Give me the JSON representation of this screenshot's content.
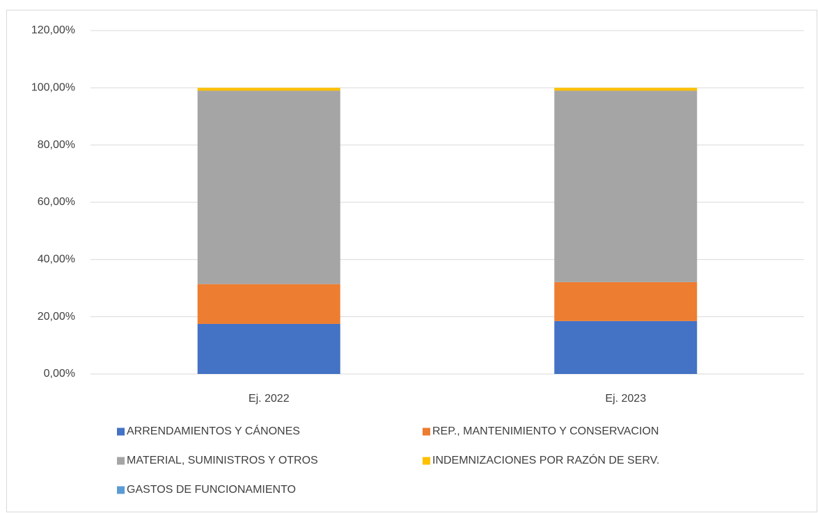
{
  "chart_data": {
    "type": "stacked_bar",
    "categories": [
      "Ej. 2022",
      "Ej. 2023"
    ],
    "series": [
      {
        "name": "ARRENDAMIENTOS Y CÁNONES",
        "color": "#4472c4",
        "values": [
          17.5,
          18.5
        ]
      },
      {
        "name": "REP., MANTENIMIENTO Y CONSERVACION",
        "color": "#ed7d31",
        "values": [
          13.9,
          13.6
        ]
      },
      {
        "name": "MATERIAL, SUMINISTROS Y OTROS",
        "color": "#a5a5a5",
        "values": [
          67.6,
          66.9
        ]
      },
      {
        "name": "INDEMNIZACIONES POR RAZÓN DE SERV.",
        "color": "#ffc000",
        "values": [
          1.0,
          1.0
        ]
      },
      {
        "name": "GASTOS DE FUNCIONAMIENTO",
        "color": "#5b9bd5",
        "values": [
          0,
          0
        ]
      }
    ],
    "ylim": [
      0,
      120
    ],
    "yticks": [
      {
        "value": 0,
        "label": "0,00%"
      },
      {
        "value": 20,
        "label": "20,00%"
      },
      {
        "value": 40,
        "label": "40,00%"
      },
      {
        "value": 60,
        "label": "60,00%"
      },
      {
        "value": 80,
        "label": "80,00%"
      },
      {
        "value": 100,
        "label": "100,00%"
      },
      {
        "value": 120,
        "label": "120,00%"
      }
    ],
    "grid": true
  }
}
